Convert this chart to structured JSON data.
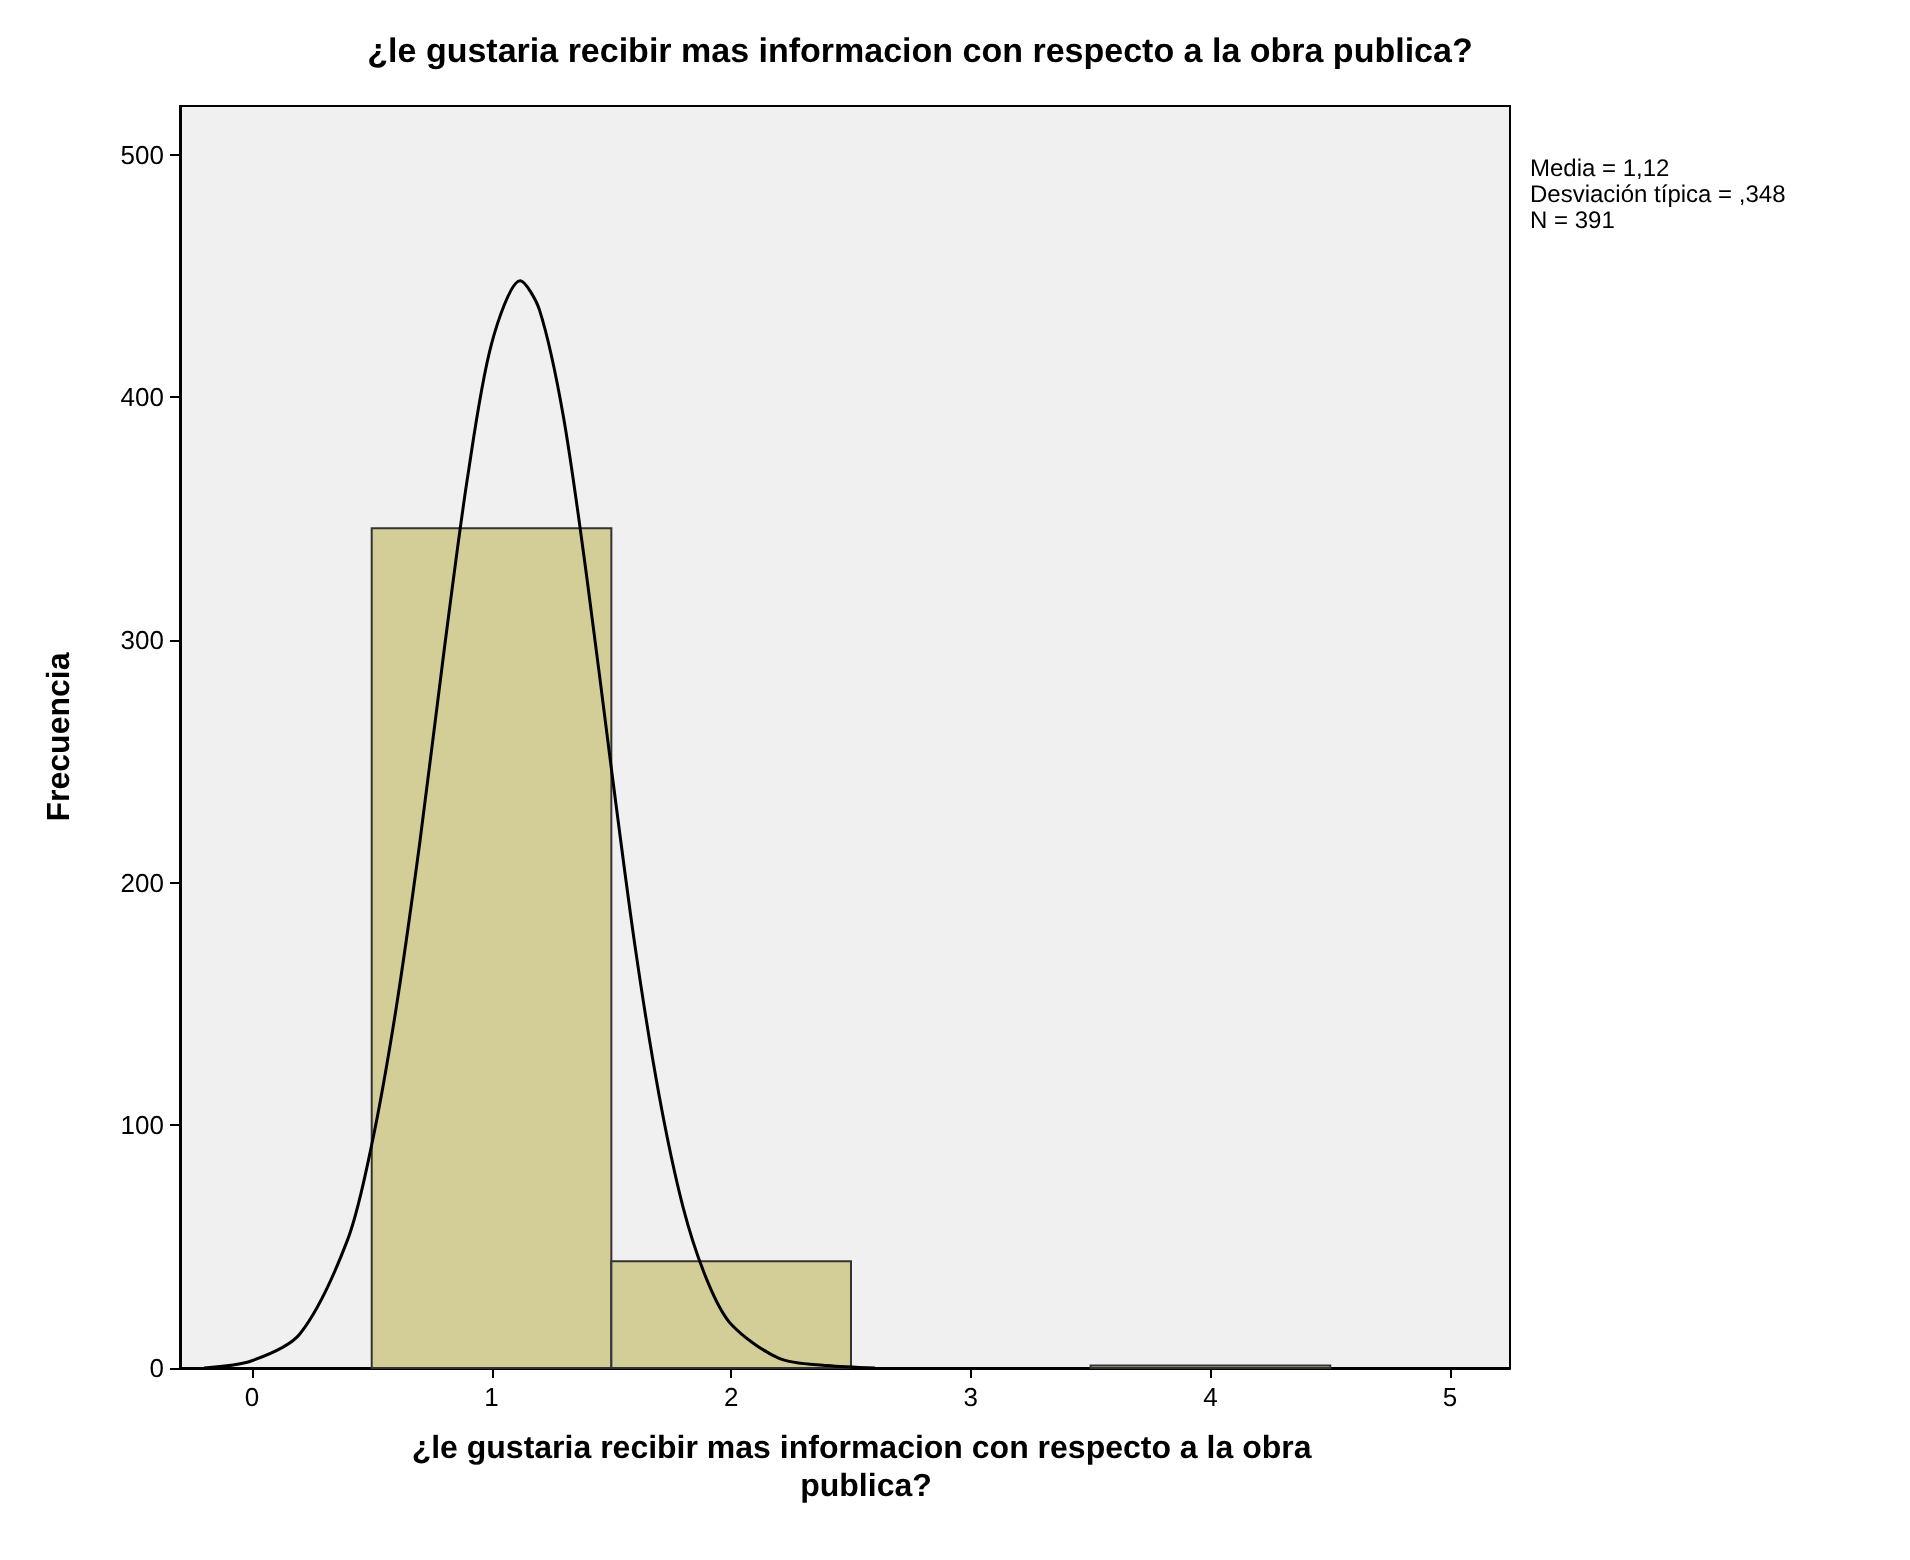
{
  "chart_data": {
    "type": "histogram",
    "title": "¿le gustaria recibir mas informacion con respecto a la obra publica?",
    "xlabel": "¿le gustaria recibir mas informacion con respecto a la obra publica?",
    "ylabel": "Frecuencia",
    "bins": [
      0.5,
      1.5,
      2.5,
      3.5,
      4.5
    ],
    "values": [
      346,
      44,
      0,
      1
    ],
    "color": "#d3ce98",
    "series": [
      {
        "type": "line",
        "color": "#000000",
        "marker": "none",
        "x": [
          -0.2,
          0,
          0.2,
          0.4,
          0.5,
          0.6,
          0.7,
          0.8,
          0.9,
          1.0,
          1.12,
          1.2,
          1.3,
          1.4,
          1.5,
          1.6,
          1.7,
          1.8,
          1.9,
          2.0,
          2.2,
          2.4,
          2.6
        ],
        "values": [
          0,
          3,
          14,
          53,
          92,
          147,
          216,
          294,
          367,
          422,
          448,
          436,
          392,
          324,
          247,
          173,
          112,
          66,
          36,
          18,
          4,
          1,
          0
        ]
      }
    ],
    "xlim": [
      -0.3,
      5.25
    ],
    "xticks": [
      0,
      1,
      2,
      3,
      4,
      5
    ],
    "ylim": [
      0,
      520
    ],
    "yticks": [
      0,
      100,
      200,
      300,
      400,
      500
    ],
    "grid": false,
    "annotations": [
      "Media = 1,12",
      "Desviación típica = ,348",
      "N = 391"
    ]
  }
}
